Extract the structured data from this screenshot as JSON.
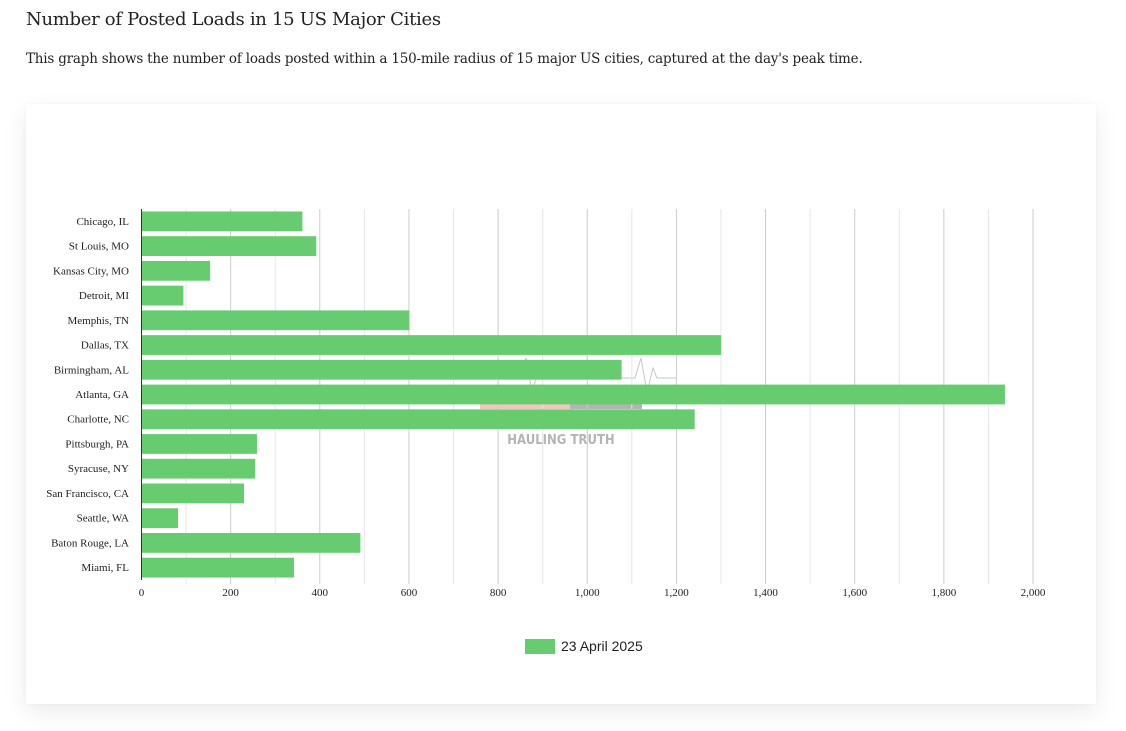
{
  "header": {
    "title": "Number of Posted Loads in 15 US Major Cities",
    "subtitle": "This graph shows the number of loads posted within a 150-mile radius of 15 major US cities, captured at the day's peak time."
  },
  "watermark": {
    "text": "HAULING TRUTH"
  },
  "chart_data": {
    "type": "bar",
    "orientation": "horizontal",
    "title": "",
    "xlabel": "",
    "ylabel": "",
    "categories": [
      "Chicago, IL",
      "St Louis, MO",
      "Kansas City, MO",
      "Detroit, MI",
      "Memphis, TN",
      "Dallas, TX",
      "Birmingham, AL",
      "Atlanta, GA",
      "Charlotte, NC",
      "Pittsburgh, PA",
      "Syracuse, NY",
      "San Francisco, CA",
      "Seattle, WA",
      "Baton Rouge, LA",
      "Miami, FL"
    ],
    "series": [
      {
        "name": "23 April 2025",
        "color": "#66cc6f",
        "values": [
          361,
          392,
          154,
          94,
          601,
          1300,
          1077,
          1937,
          1241,
          259,
          255,
          230,
          82,
          491,
          342
        ]
      }
    ],
    "xlim": [
      0,
      2000
    ],
    "xticks": [
      0,
      200,
      400,
      600,
      800,
      1000,
      1200,
      1400,
      1600,
      1800,
      2000
    ],
    "xtick_labels": [
      "0",
      "200",
      "400",
      "600",
      "800",
      "1,000",
      "1,200",
      "1,400",
      "1,600",
      "1,800",
      "2,000"
    ],
    "minor_grid_step": 100,
    "grid": true,
    "legend_position": "bottom-center"
  }
}
